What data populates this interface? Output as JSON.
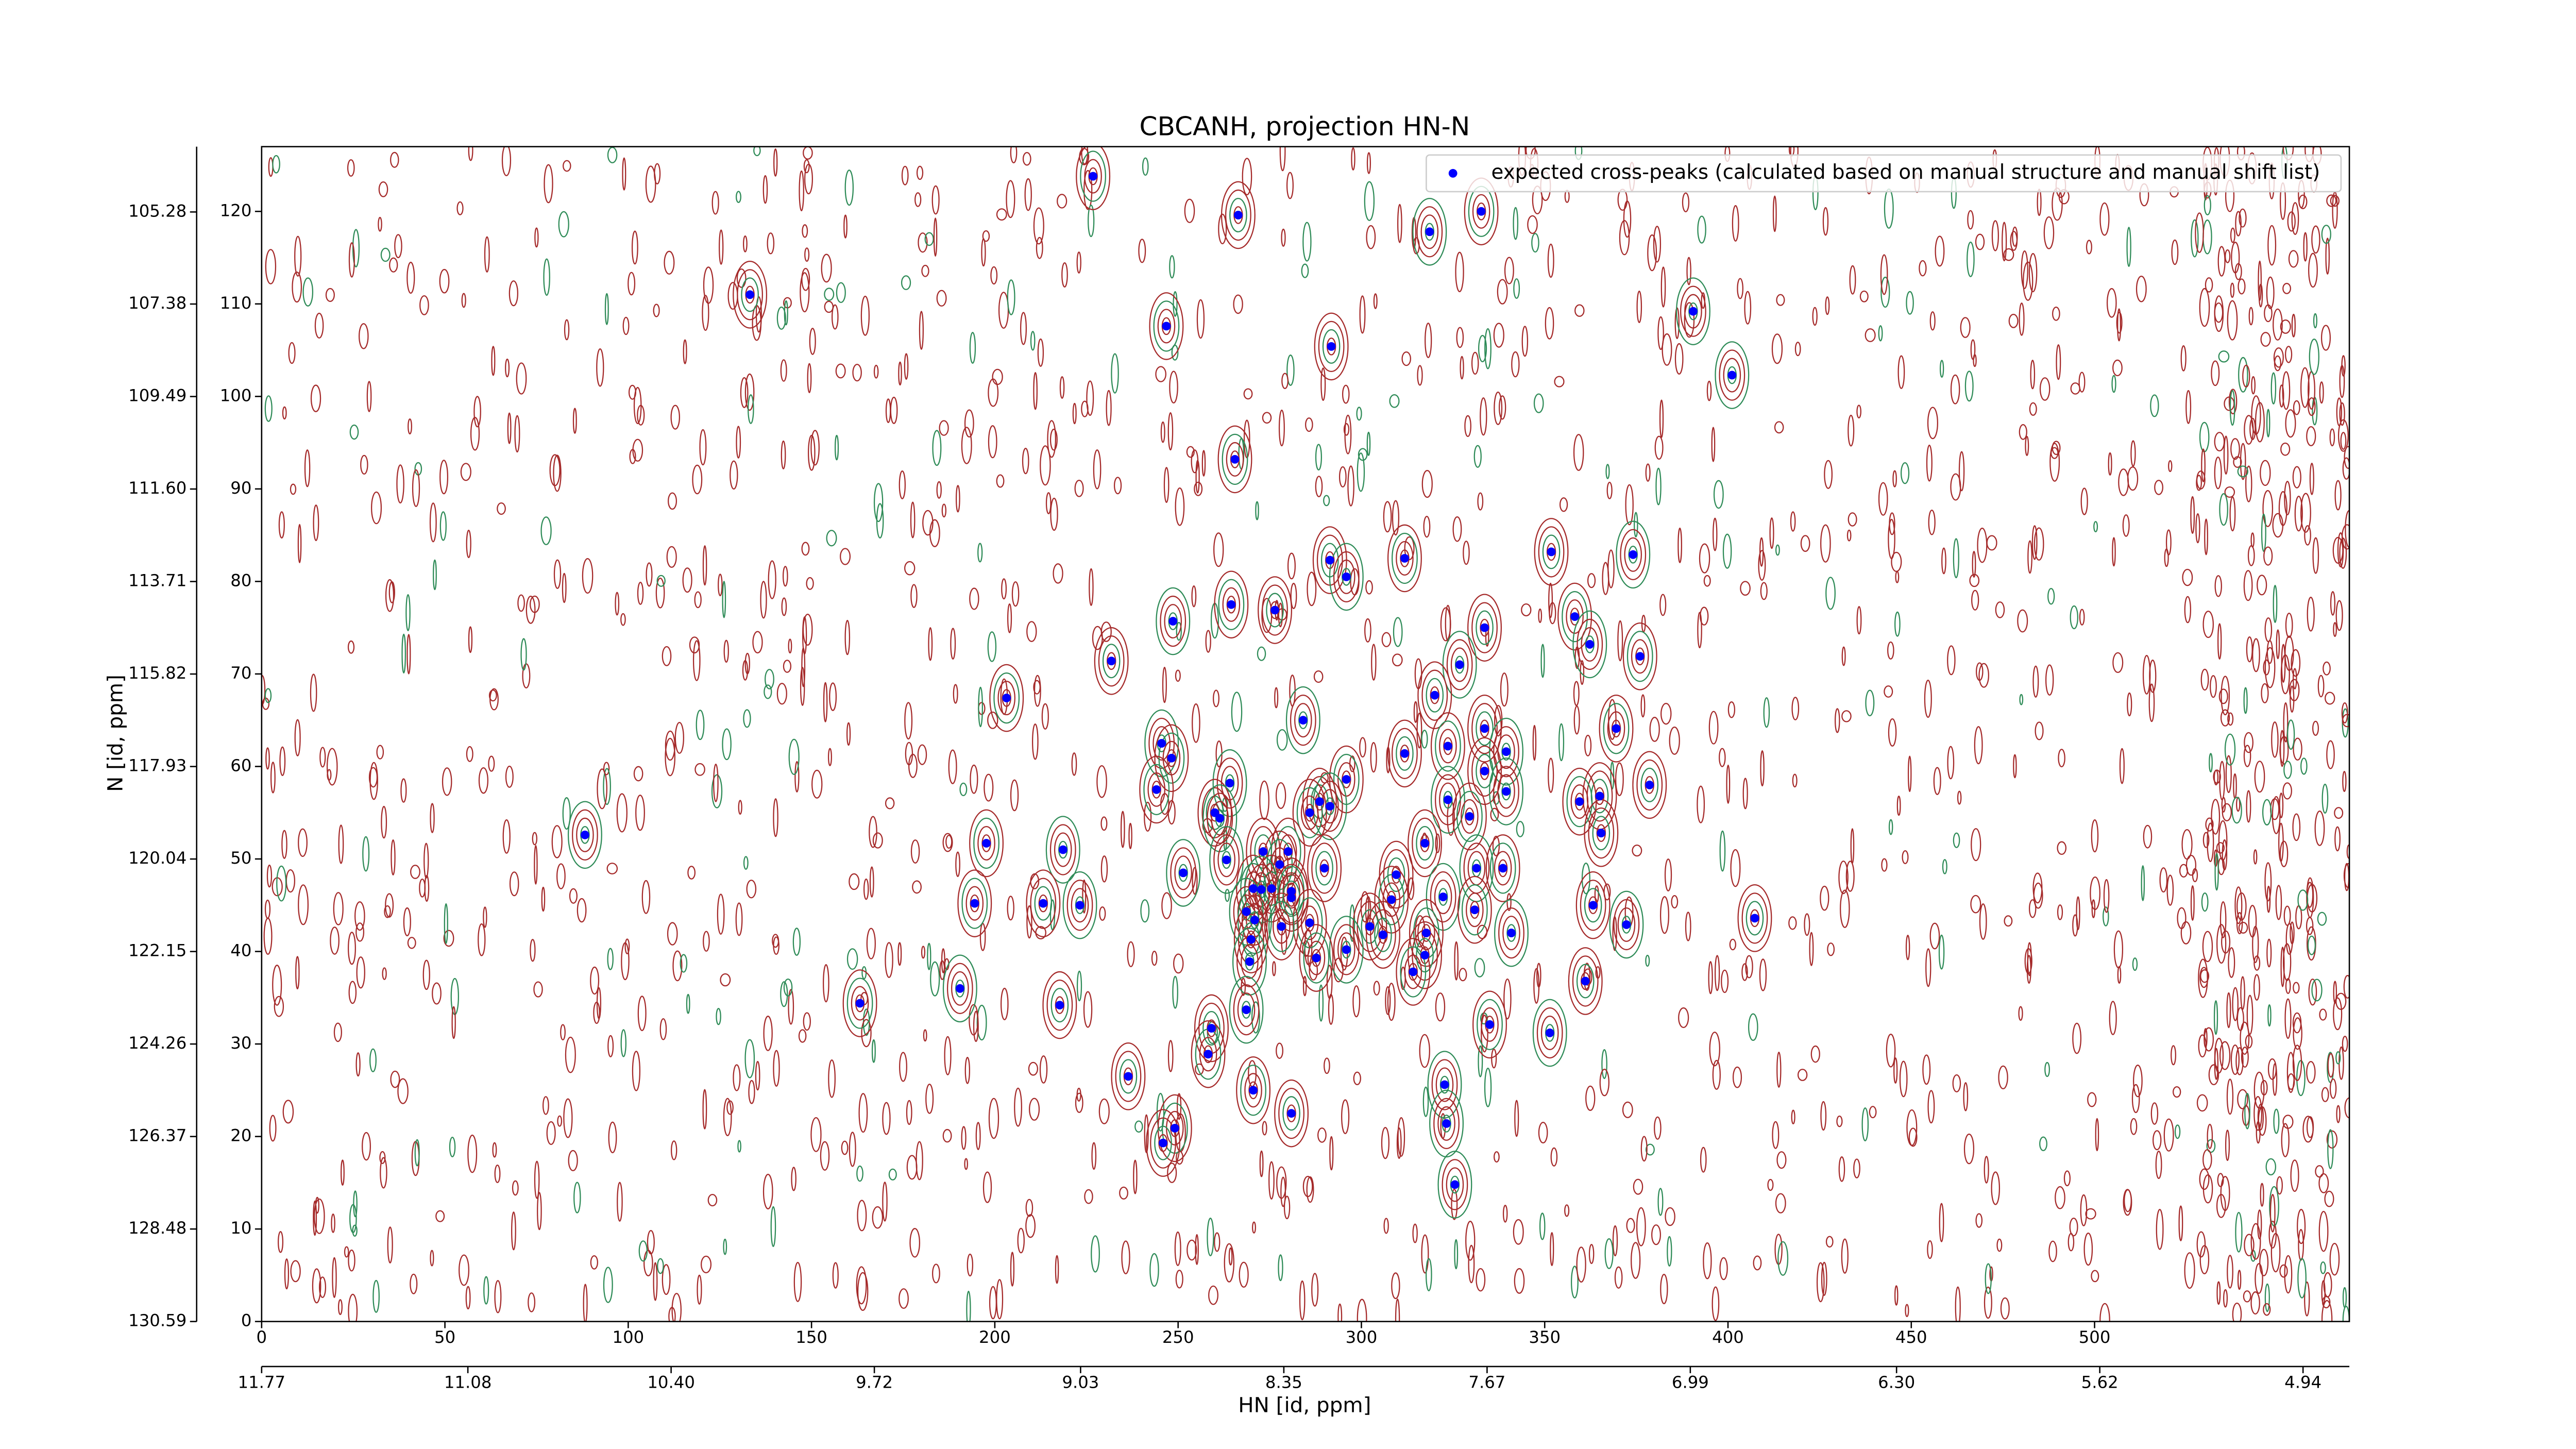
{
  "chart_data": {
    "type": "scatter",
    "title": "CBCANH, projection HN-N",
    "xlabel": "HN [id, ppm]",
    "ylabel": "N [id, ppm]",
    "legend": "upper right",
    "series": [
      {
        "name": "expected cross-peaks (calculated based on manual structure and manual shift list)",
        "color": "#0000ff",
        "x": [
          226.8,
          266.4,
          318.6,
          332.7,
          133.2,
          390.5,
          246.8,
          291.8,
          401.1,
          265.5,
          351.8,
          374.1,
          311.8,
          291.4,
          295.9,
          264.5,
          276.4,
          248.6,
          358.2,
          333.6,
          362.3,
          376.0,
          231.8,
          326.8,
          203.2,
          320.0,
          284.1,
          369.5,
          333.6,
          245.5,
          323.6,
          311.8,
          339.5,
          248.2,
          333.6,
          264.1,
          295.9,
          378.6,
          339.5,
          244.1,
          365.0,
          323.6,
          359.5,
          288.6,
          291.4,
          285.9,
          260.0,
          261.4,
          329.5,
          365.4,
          88.2,
          197.7,
          317.3,
          218.6,
          280.0,
          273.2,
          263.2,
          277.7,
          289.9,
          331.4,
          338.6,
          309.5,
          251.4,
          270.5,
          275.5,
          272.7,
          280.9,
          280.9,
          322.3,
          194.5,
          213.2,
          223.2,
          308.2,
          363.2,
          268.6,
          330.9,
          407.3,
          270.9,
          285.9,
          302.3,
          372.3,
          278.2,
          305.9,
          340.9,
          317.7,
          269.9,
          295.9,
          287.7,
          317.3,
          269.5,
          314.1,
          361.1,
          190.5,
          163.2,
          217.7,
          268.6,
          335.0,
          259.1,
          351.4,
          258.2,
          236.4,
          322.7,
          270.5,
          280.9,
          323.2,
          249.1,
          245.9,
          325.5
        ],
        "values": [
          123.8,
          119.6,
          117.8,
          120.0,
          111.0,
          109.2,
          107.6,
          105.4,
          102.3,
          93.2,
          83.2,
          82.9,
          82.5,
          82.3,
          80.5,
          77.5,
          76.9,
          75.7,
          76.2,
          75.0,
          73.2,
          71.9,
          71.4,
          71.0,
          67.4,
          67.7,
          65.0,
          64.1,
          64.1,
          62.5,
          62.2,
          61.4,
          61.6,
          60.9,
          59.5,
          58.2,
          58.6,
          58.0,
          57.3,
          57.5,
          56.8,
          56.4,
          56.2,
          56.2,
          55.7,
          55.0,
          55.0,
          54.4,
          54.6,
          52.8,
          52.6,
          51.7,
          51.7,
          51.0,
          50.8,
          50.8,
          49.9,
          49.4,
          49.0,
          49.0,
          49.0,
          48.3,
          48.5,
          46.8,
          46.8,
          46.7,
          46.5,
          45.8,
          45.9,
          45.2,
          45.2,
          45.0,
          45.6,
          45.0,
          44.3,
          44.5,
          43.6,
          43.4,
          43.1,
          42.7,
          42.9,
          42.7,
          41.8,
          42.0,
          42.0,
          41.3,
          40.2,
          39.3,
          39.6,
          38.9,
          37.8,
          36.8,
          36.0,
          34.4,
          34.2,
          33.7,
          32.1,
          31.7,
          31.2,
          28.9,
          26.5,
          25.6,
          25.0,
          22.5,
          21.4,
          20.9,
          19.3,
          14.8
        ]
      }
    ],
    "xlim": [
      0,
      569.5
    ],
    "ylim": [
      0,
      127
    ],
    "xticks": [
      0,
      50,
      100,
      150,
      200,
      250,
      300,
      350,
      400,
      450,
      500
    ],
    "yticks": [
      0,
      10,
      20,
      30,
      40,
      50,
      60,
      70,
      80,
      90,
      100,
      110,
      120
    ],
    "x2lim": [
      11.77,
      4.785
    ],
    "x2ticks": [
      11.77,
      11.08,
      {
        "value": 10.4,
        "label": "10.40"
      },
      9.72,
      9.03,
      8.35,
      7.67,
      6.99,
      {
        "value": 6.3,
        "label": "6.30"
      },
      5.62,
      4.94
    ],
    "y2lim": [
      130.59,
      103.79
    ],
    "y2ticks": [
      130.59,
      128.48,
      126.37,
      124.26,
      122.15,
      120.04,
      117.93,
      115.82,
      113.71,
      {
        "value": 111.6,
        "label": "111.60"
      },
      109.49,
      107.38,
      105.28
    ]
  }
}
